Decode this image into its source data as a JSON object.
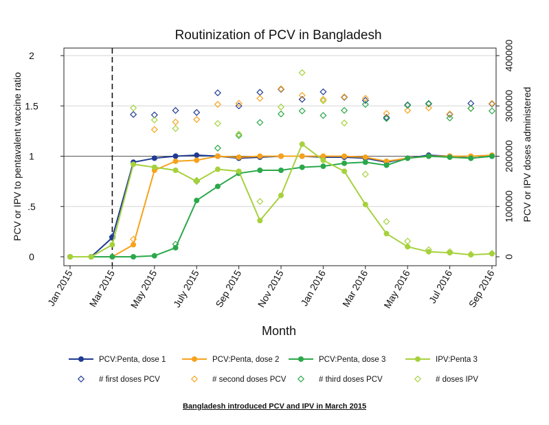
{
  "chart_data": {
    "type": "line",
    "title": "Routinization of PCV in Bangladesh",
    "xlabel": "Month",
    "ylabel": "PCV or IPV to pentavalent vaccine ratio",
    "y2label": "PCV or IPV doses administered",
    "ylim": [
      0,
      2
    ],
    "y2lim": [
      0,
      400000
    ],
    "yticks": [
      "0",
      ".5",
      "1",
      "1.5",
      "2"
    ],
    "y2ticks": [
      "0",
      "100000",
      "200000",
      "300000",
      "400000"
    ],
    "reference_line_y": 1,
    "intro_marker": "Mar 2015",
    "x": [
      "Jan 2015",
      "Feb 2015",
      "Mar 2015",
      "Apr 2015",
      "May 2015",
      "Jun 2015",
      "Jul 2015",
      "Aug 2015",
      "Sep 2015",
      "Oct 2015",
      "Nov 2015",
      "Dec 2015",
      "Jan 2016",
      "Feb 2016",
      "Mar 2016",
      "Apr 2016",
      "May 2016",
      "Jun 2016",
      "Jul 2016",
      "Aug 2016",
      "Sep 2016"
    ],
    "xticks": [
      "Jan 2015",
      "Mar 2015",
      "May 2015",
      "July 2015",
      "Sep 2015",
      "Nov 2015",
      "Jan 2016",
      "Mar 2016",
      "May 2016",
      "Jul 2016",
      "Sep 2016"
    ],
    "series": [
      {
        "name": "PCV:Penta, dose 1",
        "axis": "left",
        "kind": "line",
        "color": "#1f3a93",
        "values": [
          0,
          0,
          0.19,
          0.94,
          0.98,
          1.0,
          1.01,
          1.0,
          0.98,
          0.99,
          1.0,
          1.0,
          0.99,
          0.99,
          0.98,
          0.94,
          0.98,
          1.01,
          1.0,
          0.98,
          1.0
        ]
      },
      {
        "name": "PCV:Penta, dose 2",
        "axis": "left",
        "kind": "line",
        "color": "#f7a21b",
        "values": [
          0,
          0,
          0,
          0.12,
          0.86,
          0.95,
          0.96,
          1.0,
          0.99,
          1.0,
          1.0,
          1.0,
          1.0,
          1.0,
          0.99,
          0.95,
          0.98,
          1.0,
          1.0,
          1.0,
          1.01
        ]
      },
      {
        "name": "PCV:Penta, dose 3",
        "axis": "left",
        "kind": "line",
        "color": "#2aa84a",
        "values": [
          0,
          0,
          0,
          0,
          0.01,
          0.09,
          0.56,
          0.7,
          0.83,
          0.86,
          0.86,
          0.89,
          0.9,
          0.93,
          0.94,
          0.91,
          0.98,
          1.0,
          0.99,
          0.98,
          1.0
        ]
      },
      {
        "name": "IPV:Penta 3",
        "axis": "left",
        "kind": "line",
        "color": "#a6d13c",
        "values": [
          0,
          0,
          0.12,
          0.92,
          0.89,
          0.86,
          0.75,
          0.87,
          0.85,
          0.36,
          0.61,
          1.12,
          0.96,
          0.85,
          0.52,
          0.23,
          0.1,
          0.05,
          0.04,
          0.02,
          0.03
        ]
      },
      {
        "name": "# first doses PCV",
        "axis": "right",
        "kind": "diamond",
        "color": "#1f3a93",
        "values": [
          null,
          null,
          40000,
          283000,
          282000,
          291000,
          287000,
          326000,
          300000,
          327000,
          333000,
          313000,
          328000,
          317000,
          311000,
          277000,
          302000,
          304000,
          283000,
          305000,
          304000
        ]
      },
      {
        "name": "# second doses PCV",
        "axis": "right",
        "kind": "diamond",
        "color": "#f7a21b",
        "values": [
          null,
          null,
          null,
          35000,
          253000,
          268000,
          273000,
          303000,
          305000,
          315000,
          334000,
          321000,
          313000,
          318000,
          315000,
          285000,
          291000,
          296000,
          284000,
          295000,
          305000
        ]
      },
      {
        "name": "# third doses PCV",
        "axis": "right",
        "kind": "diamond",
        "color": "#2aa84a",
        "values": [
          null,
          null,
          null,
          null,
          null,
          25000,
          150000,
          216000,
          241000,
          267000,
          284000,
          290000,
          281000,
          291000,
          303000,
          275000,
          301000,
          305000,
          276000,
          295000,
          290000
        ]
      },
      {
        "name": "# doses IPV",
        "axis": "right",
        "kind": "diamond",
        "color": "#a6d13c",
        "values": [
          null,
          null,
          37000,
          296000,
          272000,
          255000,
          152000,
          265000,
          244000,
          110000,
          298000,
          366000,
          310000,
          266000,
          164000,
          70000,
          31000,
          14000,
          10000,
          5000,
          7000
        ]
      }
    ],
    "legend_placement": "bottom",
    "grid": true
  },
  "footnote": "Bangladesh introduced PCV and IPV in March 2015"
}
